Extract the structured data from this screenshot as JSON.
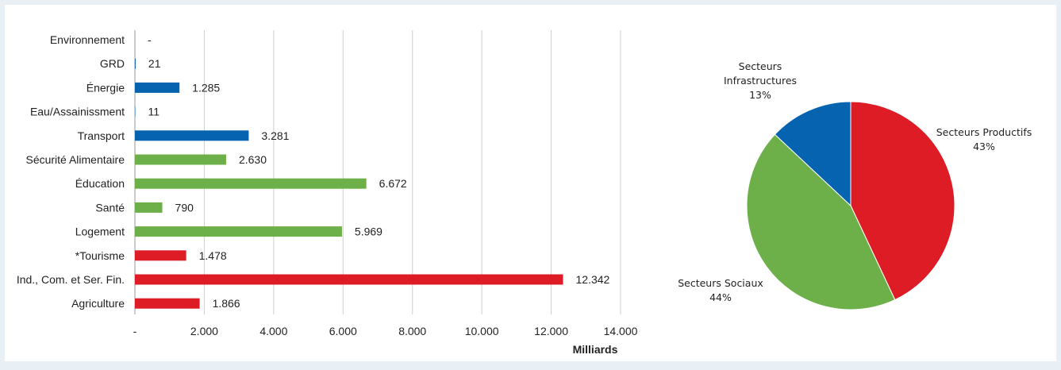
{
  "chart_data": [
    {
      "type": "bar",
      "orientation": "horizontal",
      "categories": [
        "Environnement",
        "GRD",
        "Énergie",
        "Eau/Assainissment",
        "Transport",
        "Sécurité Alimentaire",
        "Éducation",
        "Santé",
        "Logement",
        "*Tourisme",
        "Ind., Com. et Ser. Fin.",
        "Agriculture"
      ],
      "values": [
        0,
        21,
        1285,
        11,
        3281,
        2630,
        6672,
        790,
        5969,
        1478,
        12342,
        1866
      ],
      "value_labels": [
        "-",
        "21",
        "1.285",
        "11",
        "3.281",
        "2.630",
        "6.672",
        "790",
        "5.969",
        "1.478",
        "12.342",
        "1.866"
      ],
      "groups": [
        "infra",
        "infra",
        "infra",
        "infra",
        "infra",
        "social",
        "social",
        "social",
        "social",
        "productif",
        "productif",
        "productif"
      ],
      "group_colors": {
        "infra": "#0563b0",
        "social": "#6db04a",
        "productif": "#dd1c26"
      },
      "xlim": [
        0,
        14000
      ],
      "x_ticks": [
        0,
        2000,
        4000,
        6000,
        8000,
        10000,
        12000,
        14000
      ],
      "x_tick_labels": [
        "-",
        "2.000",
        "4.000",
        "6.000",
        "8.000",
        "10.000",
        "12.000",
        "14.000"
      ],
      "xlabel": "Milliards",
      "grid": "vertical"
    },
    {
      "type": "pie",
      "slices": [
        {
          "name": "Secteurs Productifs",
          "value": 43,
          "label": "43%",
          "color": "#dd1c26"
        },
        {
          "name": "Secteurs Sociaux",
          "value": 44,
          "label": "44%",
          "color": "#6db04a"
        },
        {
          "name": "Secteurs Infrastructures",
          "value": 13,
          "label": "13%",
          "color": "#0563b0"
        }
      ],
      "name_lines": [
        [
          "Secteurs Productifs"
        ],
        [
          "Secteurs Sociaux"
        ],
        [
          "Secteurs",
          "Infrastructures"
        ]
      ]
    }
  ]
}
